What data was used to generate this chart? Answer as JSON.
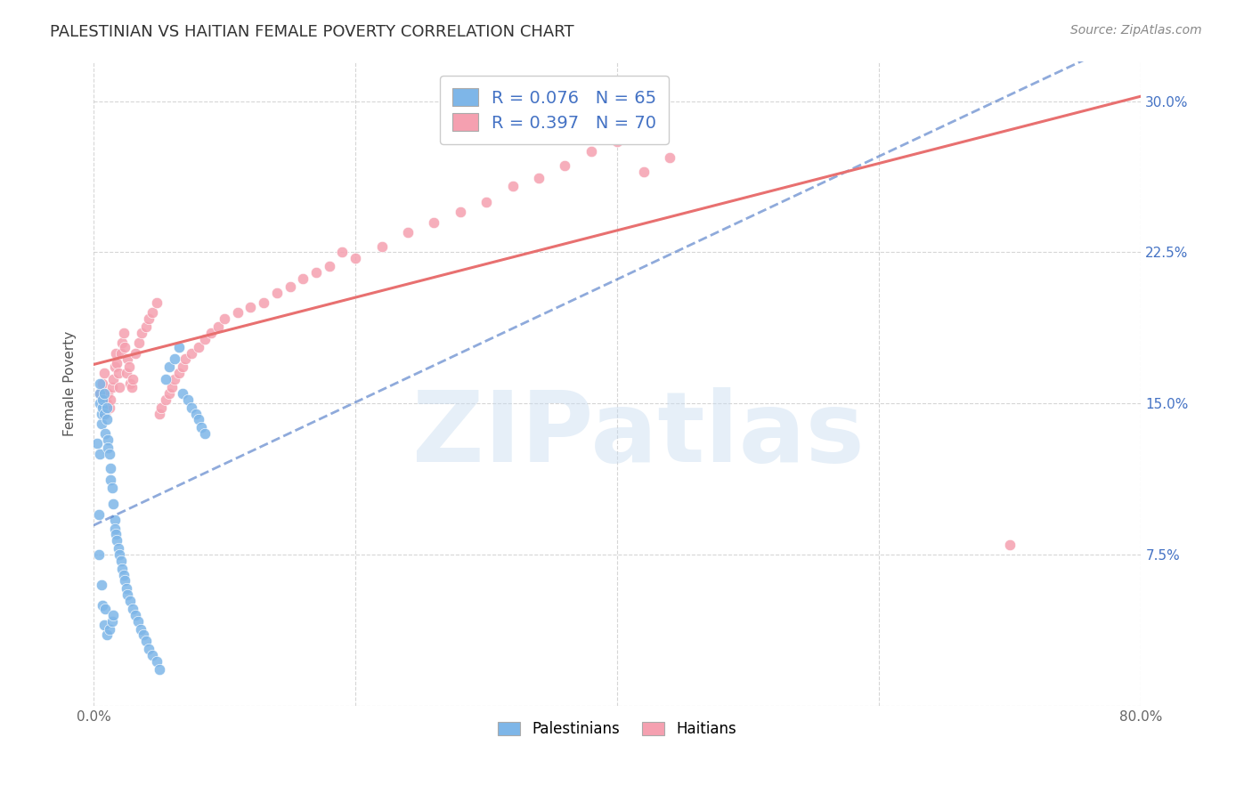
{
  "title": "PALESTINIAN VS HAITIAN FEMALE POVERTY CORRELATION CHART",
  "source": "Source: ZipAtlas.com",
  "ylabel": "Female Poverty",
  "xlim": [
    0.0,
    0.8
  ],
  "ylim": [
    0.0,
    0.32
  ],
  "xticks": [
    0.0,
    0.2,
    0.4,
    0.6,
    0.8
  ],
  "xticklabels": [
    "0.0%",
    "",
    "",
    "",
    "80.0%"
  ],
  "yticks": [
    0.0,
    0.075,
    0.15,
    0.225,
    0.3
  ],
  "yticklabels": [
    "",
    "7.5%",
    "15.0%",
    "22.5%",
    "30.0%"
  ],
  "watermark": "ZIPatlas",
  "blue_color": "#7EB6E8",
  "pink_color": "#F5A0B0",
  "blue_line_color": "#4472C4",
  "pink_line_color": "#E87070",
  "grid_color": "#CCCCCC",
  "title_color": "#333333",
  "right_tick_color": "#4472C4",
  "palestinians_x": [
    0.003,
    0.004,
    0.004,
    0.005,
    0.005,
    0.005,
    0.005,
    0.006,
    0.006,
    0.006,
    0.007,
    0.007,
    0.007,
    0.008,
    0.008,
    0.008,
    0.009,
    0.009,
    0.01,
    0.01,
    0.01,
    0.011,
    0.011,
    0.012,
    0.012,
    0.013,
    0.013,
    0.014,
    0.014,
    0.015,
    0.015,
    0.016,
    0.016,
    0.017,
    0.018,
    0.019,
    0.02,
    0.021,
    0.022,
    0.023,
    0.024,
    0.025,
    0.026,
    0.028,
    0.03,
    0.032,
    0.034,
    0.036,
    0.038,
    0.04,
    0.042,
    0.045,
    0.048,
    0.05,
    0.055,
    0.058,
    0.062,
    0.065,
    0.068,
    0.072,
    0.075,
    0.078,
    0.08,
    0.082,
    0.085
  ],
  "palestinians_y": [
    0.13,
    0.095,
    0.075,
    0.15,
    0.155,
    0.16,
    0.125,
    0.14,
    0.145,
    0.06,
    0.148,
    0.152,
    0.05,
    0.155,
    0.145,
    0.04,
    0.135,
    0.048,
    0.148,
    0.142,
    0.035,
    0.132,
    0.128,
    0.125,
    0.038,
    0.118,
    0.112,
    0.108,
    0.042,
    0.1,
    0.045,
    0.092,
    0.088,
    0.085,
    0.082,
    0.078,
    0.075,
    0.072,
    0.068,
    0.065,
    0.062,
    0.058,
    0.055,
    0.052,
    0.048,
    0.045,
    0.042,
    0.038,
    0.035,
    0.032,
    0.028,
    0.025,
    0.022,
    0.018,
    0.162,
    0.168,
    0.172,
    0.178,
    0.155,
    0.152,
    0.148,
    0.145,
    0.142,
    0.138,
    0.135
  ],
  "haitians_x": [
    0.005,
    0.007,
    0.008,
    0.009,
    0.01,
    0.011,
    0.012,
    0.013,
    0.014,
    0.015,
    0.016,
    0.017,
    0.018,
    0.019,
    0.02,
    0.021,
    0.022,
    0.023,
    0.024,
    0.025,
    0.026,
    0.027,
    0.028,
    0.029,
    0.03,
    0.032,
    0.035,
    0.037,
    0.04,
    0.042,
    0.045,
    0.048,
    0.05,
    0.052,
    0.055,
    0.058,
    0.06,
    0.062,
    0.065,
    0.068,
    0.07,
    0.075,
    0.08,
    0.085,
    0.09,
    0.095,
    0.1,
    0.11,
    0.12,
    0.13,
    0.14,
    0.15,
    0.16,
    0.17,
    0.18,
    0.19,
    0.2,
    0.22,
    0.24,
    0.26,
    0.28,
    0.3,
    0.32,
    0.34,
    0.36,
    0.38,
    0.4,
    0.42,
    0.44,
    0.7
  ],
  "haitians_y": [
    0.155,
    0.16,
    0.165,
    0.145,
    0.15,
    0.155,
    0.148,
    0.152,
    0.158,
    0.162,
    0.168,
    0.175,
    0.17,
    0.165,
    0.158,
    0.175,
    0.18,
    0.185,
    0.178,
    0.165,
    0.172,
    0.168,
    0.16,
    0.158,
    0.162,
    0.175,
    0.18,
    0.185,
    0.188,
    0.192,
    0.195,
    0.2,
    0.145,
    0.148,
    0.152,
    0.155,
    0.158,
    0.162,
    0.165,
    0.168,
    0.172,
    0.175,
    0.178,
    0.182,
    0.185,
    0.188,
    0.192,
    0.195,
    0.198,
    0.2,
    0.205,
    0.208,
    0.212,
    0.215,
    0.218,
    0.225,
    0.222,
    0.228,
    0.235,
    0.24,
    0.245,
    0.25,
    0.258,
    0.262,
    0.268,
    0.275,
    0.28,
    0.265,
    0.272,
    0.08
  ],
  "background_color": "#FFFFFF",
  "fig_width": 14.06,
  "fig_height": 8.92,
  "dpi": 100
}
